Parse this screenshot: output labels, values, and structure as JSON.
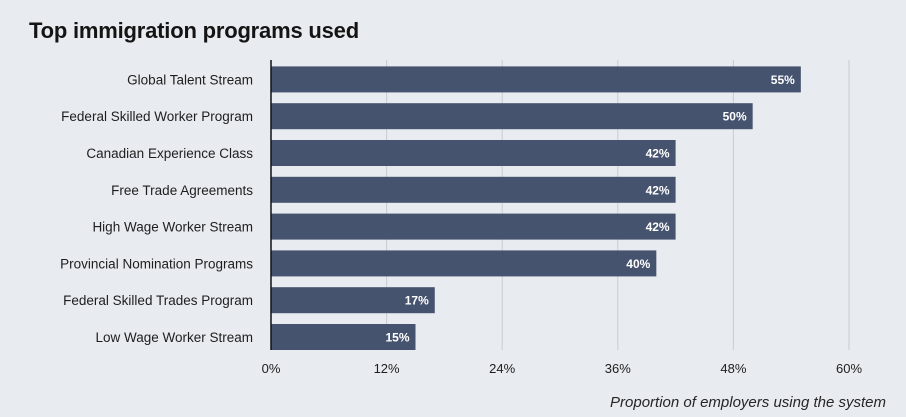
{
  "chart_data": {
    "type": "bar",
    "orientation": "horizontal",
    "title": "Top immigration programs used",
    "xlabel": "Proportion of employers using the system",
    "ylabel": "",
    "categories": [
      "Global Talent Stream",
      "Federal Skilled Worker Program",
      "Canadian Experience Class",
      "Free Trade Agreements",
      "High Wage Worker Stream",
      "Provincial Nomination Programs",
      "Federal Skilled Trades Program",
      "Low Wage Worker Stream"
    ],
    "values": [
      55,
      50,
      42,
      42,
      42,
      40,
      17,
      15
    ],
    "value_labels": [
      "55%",
      "50%",
      "42%",
      "42%",
      "42%",
      "40%",
      "17%",
      "15%"
    ],
    "xlim": [
      0,
      60
    ],
    "xticks": [
      0,
      12,
      24,
      36,
      48,
      60
    ],
    "xtick_labels": [
      "0%",
      "12%",
      "24%",
      "36%",
      "48%",
      "60%"
    ],
    "grid": "vertical",
    "legend": "none",
    "colors": {
      "bar": "#46536e",
      "grid": "#c8ccd2",
      "axis": "#111111",
      "background": "#e8ebef"
    }
  }
}
